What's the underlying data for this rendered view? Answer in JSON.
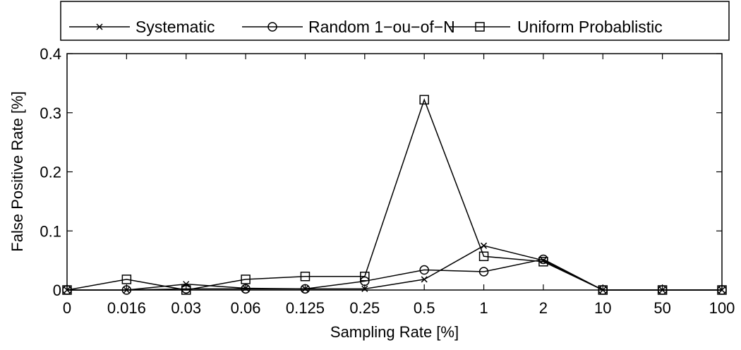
{
  "chart_data": {
    "type": "line",
    "categories": [
      "0",
      "0.016",
      "0.03",
      "0.06",
      "0.125",
      "0.25",
      "0.5",
      "1",
      "2",
      "10",
      "50",
      "100"
    ],
    "series": [
      {
        "name": "Systematic",
        "marker": "x",
        "values": [
          0,
          0,
          0.01,
          0.003,
          0.002,
          0.002,
          0.018,
          0.075,
          0.05,
          0,
          0,
          0
        ]
      },
      {
        "name": "Random 1−ou−of−N",
        "marker": "circle",
        "values": [
          0,
          0,
          0.002,
          0.002,
          0.002,
          0.015,
          0.034,
          0.031,
          0.052,
          0,
          0,
          0
        ]
      },
      {
        "name": "Uniform Probablistic",
        "marker": "square",
        "values": [
          0,
          0.018,
          0,
          0.018,
          0.023,
          0.023,
          0.322,
          0.057,
          0.048,
          0,
          0,
          0
        ]
      }
    ],
    "yticks": [
      "0",
      "0.1",
      "0.2",
      "0.3",
      "0.4"
    ],
    "ytick_values": [
      0,
      0.1,
      0.2,
      0.3,
      0.4
    ],
    "xlabel": "Sampling Rate [%]",
    "ylabel": "False Positive Rate [%]",
    "ylim": [
      0,
      0.4
    ],
    "grid": false,
    "legend_position": "top"
  }
}
